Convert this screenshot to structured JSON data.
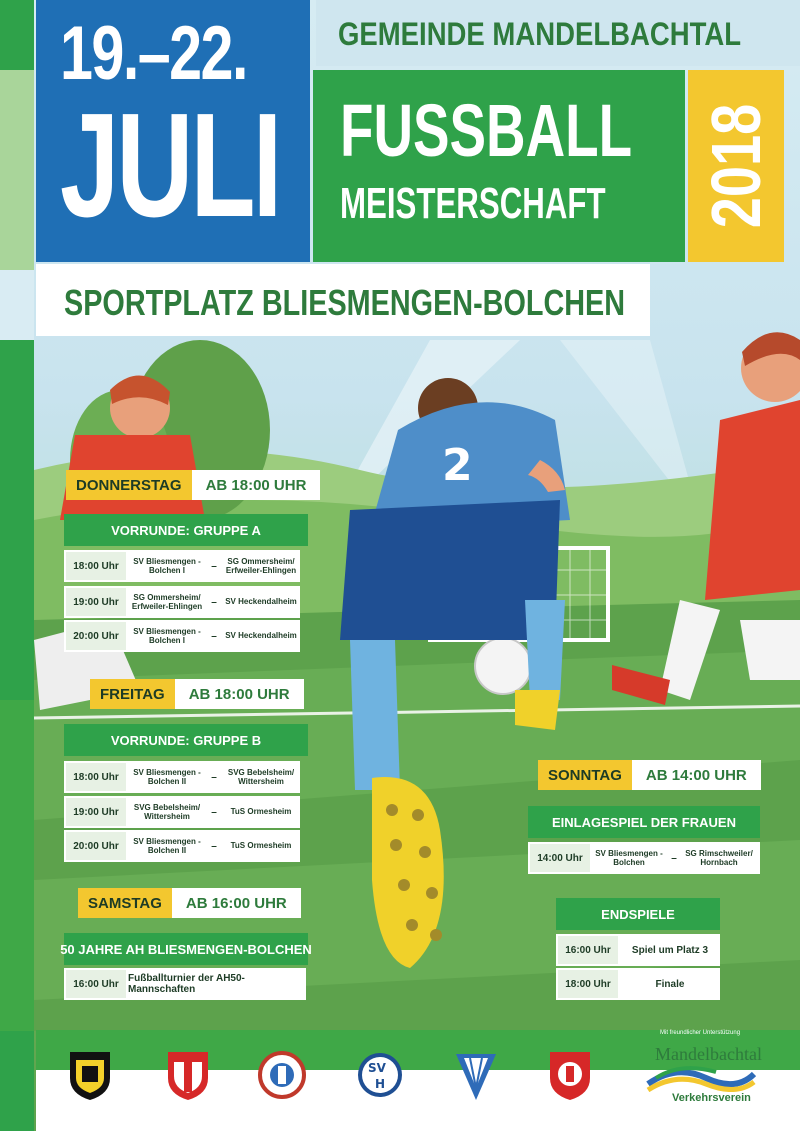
{
  "header": {
    "date_line1": "19.–22.",
    "date_line2": "JULI",
    "municipality": "GEMEINDE MANDELBACHTAL",
    "title_line1": "FUSSBALL",
    "title_line2": "MEISTERSCHAFT",
    "year": "2018",
    "venue": "SPORTPLATZ BLIESMENGEN-BOLCHEN"
  },
  "colors": {
    "blue": "#1f6fb5",
    "green": "#2fa24a",
    "yellow": "#f3c72f",
    "dark_green_text": "#2e7b3c"
  },
  "schedule": {
    "donnerstag": {
      "day": "DONNERSTAG",
      "time": "AB 18:00 UHR",
      "group": "VORRUNDE: GRUPPE A",
      "rows": [
        {
          "time": "18:00 Uhr",
          "home": "SV Bliesmengen -Bolchen I",
          "away": "SG Ommersheim/ Erfweiler-Ehlingen"
        },
        {
          "time": "19:00 Uhr",
          "home": "SG Ommersheim/ Erfweiler-Ehlingen",
          "away": "SV Heckendalheim"
        },
        {
          "time": "20:00 Uhr",
          "home": "SV Bliesmengen -Bolchen I",
          "away": "SV Heckendalheim"
        }
      ]
    },
    "freitag": {
      "day": "FREITAG",
      "time": "AB 18:00 UHR",
      "group": "VORRUNDE: GRUPPE B",
      "rows": [
        {
          "time": "18:00 Uhr",
          "home": "SV Bliesmengen -Bolchen II",
          "away": "SVG Bebelsheim/ Wittersheim"
        },
        {
          "time": "19:00 Uhr",
          "home": "SVG Bebelsheim/ Wittersheim",
          "away": "TuS Ormesheim"
        },
        {
          "time": "20:00 Uhr",
          "home": "SV Bliesmengen -Bolchen II",
          "away": "TuS Ormesheim"
        }
      ]
    },
    "samstag": {
      "day": "SAMSTAG",
      "time": "AB 16:00 UHR",
      "group": "50 JAHRE AH BLIESMENGEN-BOLCHEN",
      "rows": [
        {
          "time": "16:00 Uhr",
          "event": "Fußballturnier der AH50-Mannschaften"
        }
      ]
    },
    "sonntag": {
      "day": "SONNTAG",
      "time": "AB 14:00 UHR",
      "group": "EINLAGESPIEL DER FRAUEN",
      "rows": [
        {
          "time": "14:00 Uhr",
          "home": "SV Bliesmengen -Bolchen",
          "away": "SG Rimschweiler/ Hornbach"
        }
      ],
      "final_group": "ENDSPIELE",
      "final_rows": [
        {
          "time": "16:00 Uhr",
          "event": "Spiel um Platz 3"
        },
        {
          "time": "18:00 Uhr",
          "event": "Finale"
        }
      ]
    }
  },
  "jersey_number": "2",
  "footer": {
    "support_note": "Mit freundlicher Unterstützung",
    "sponsor_name": "Mandelbachtal",
    "sponsor_sub": "Verkehrsverein",
    "logos": [
      "svb-crest-icon",
      "sv-crest-icon",
      "club-crest-icon",
      "svh-crest-icon",
      "tus-crest-icon",
      "club-shield-icon"
    ]
  }
}
